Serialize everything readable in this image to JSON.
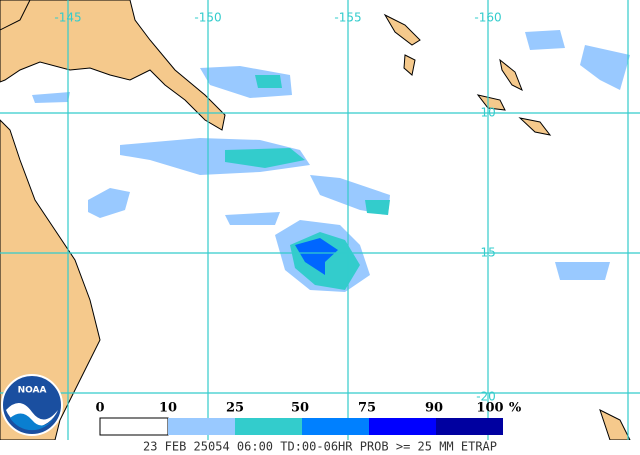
{
  "map": {
    "lon_labels": [
      "-145",
      "-150",
      "-155",
      "-160"
    ],
    "lat_labels": [
      "-10",
      "-15",
      "-20"
    ]
  },
  "legend": {
    "labels": [
      "0",
      "10",
      "25",
      "50",
      "75",
      "90",
      "100"
    ],
    "unit": "%"
  },
  "logo": "NOAA",
  "caption": "23 FEB 25054 06:00 TD:00-06HR PROB >= 25 MM ETRAP"
}
